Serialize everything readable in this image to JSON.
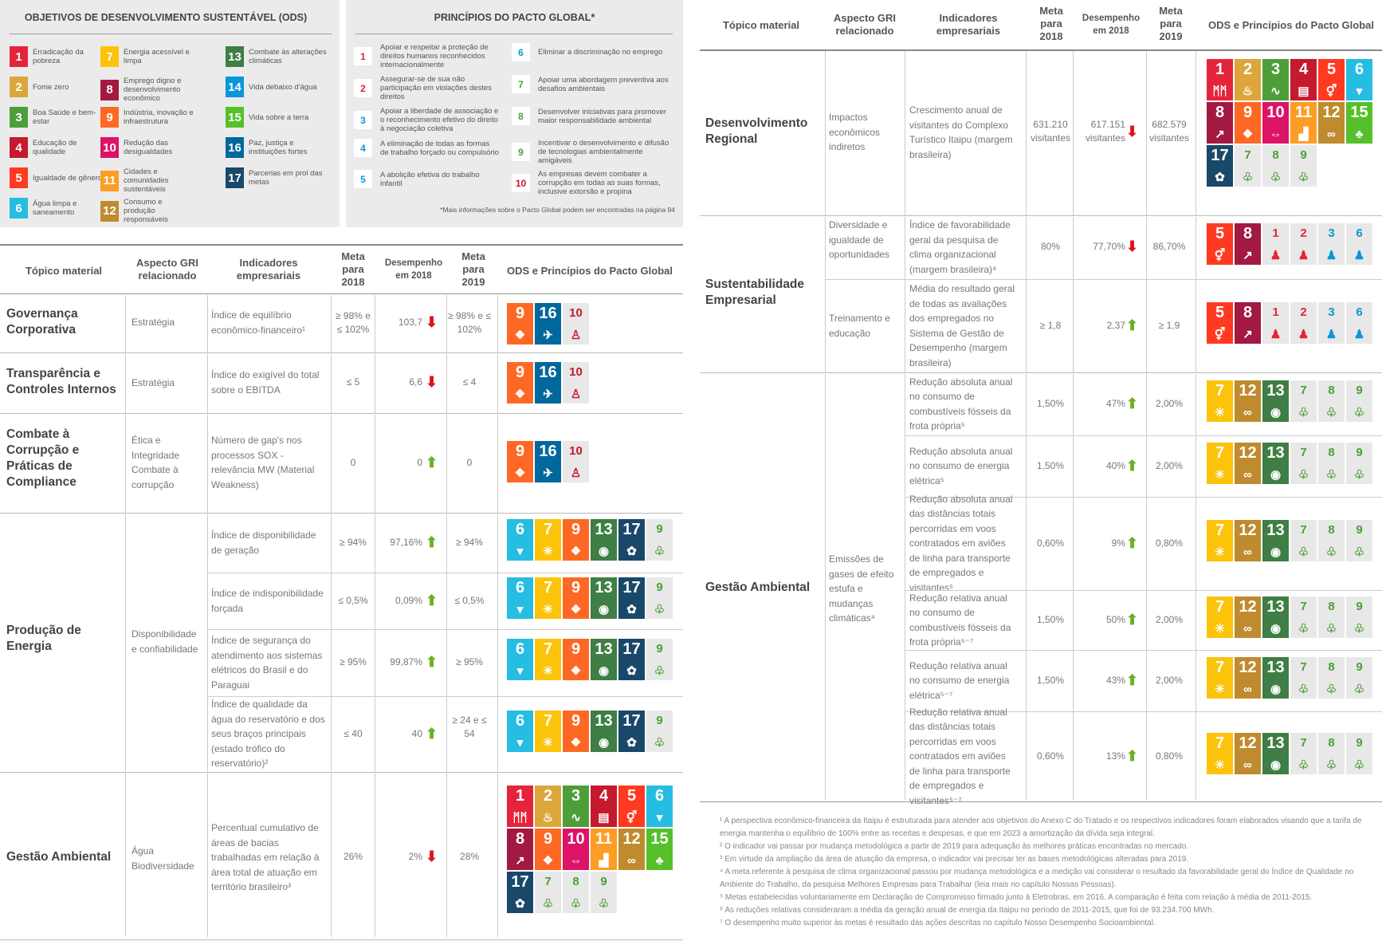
{
  "ods_panel": {
    "title": "OBJETIVOS DE DESENVOLVIMENTO SUSTENTÁVEL (ODS)",
    "items": [
      {
        "n": "1",
        "label": "Erradicação da pobreza",
        "color": "#e5243b"
      },
      {
        "n": "2",
        "label": "Fome zero",
        "color": "#dda63a"
      },
      {
        "n": "3",
        "label": "Boa Saúde e bem-estar",
        "color": "#4c9f38"
      },
      {
        "n": "4",
        "label": "Educação de qualidade",
        "color": "#c5192d"
      },
      {
        "n": "5",
        "label": "Igualdade de gênero",
        "color": "#ff3a21"
      },
      {
        "n": "6",
        "label": "Água limpa e saneamento",
        "color": "#26bde2"
      },
      {
        "n": "7",
        "label": "Energia acessível e limpa",
        "color": "#fcc30b"
      },
      {
        "n": "8",
        "label": "Emprego digno e desenvolvimento econômico",
        "color": "#a21942"
      },
      {
        "n": "9",
        "label": "Indústria, inovação e infraestrutura",
        "color": "#fd6925"
      },
      {
        "n": "10",
        "label": "Redução das desigualdades",
        "color": "#dd1367"
      },
      {
        "n": "11",
        "label": "Cidades e comunidades sustentáveis",
        "color": "#fd9d24"
      },
      {
        "n": "12",
        "label": "Consumo e produção responsáveis",
        "color": "#bf8b2e"
      },
      {
        "n": "13",
        "label": "Combate às alterações climáticas",
        "color": "#3f7e44"
      },
      {
        "n": "14",
        "label": "Vida debaixo d'água",
        "color": "#0a97d9"
      },
      {
        "n": "15",
        "label": "Vida sobre a terra",
        "color": "#56c02b"
      },
      {
        "n": "16",
        "label": "Paz, justiça e instituições fortes",
        "color": "#00689d"
      },
      {
        "n": "17",
        "label": "Parcerias em prol das metas",
        "color": "#19486a"
      }
    ]
  },
  "pg_panel": {
    "title": "PRINCÍPIOS DO PACTO GLOBAL*",
    "note": "*Mais informações sobre o Pacto Global podem ser encontradas na página 94",
    "items": [
      {
        "n": "1",
        "label": "Apoiar e respeitar a proteção de direitos humanos reconhecidos internacionalmente",
        "color": "#e5243b"
      },
      {
        "n": "2",
        "label": "Assegurar-se de sua não participação em violações destes direitos",
        "color": "#e5243b"
      },
      {
        "n": "3",
        "label": "Apoiar a liberdade de associação e o reconhecimento efetivo do direito à negociação coletiva",
        "color": "#0a97d9"
      },
      {
        "n": "4",
        "label": "A eliminação de todas as formas de trabalho forçado ou compulsório",
        "color": "#0a97d9"
      },
      {
        "n": "5",
        "label": "A abolição efetiva do trabalho infantil",
        "color": "#0a97d9"
      },
      {
        "n": "6",
        "label": "Eliminar a discriminação no emprego",
        "color": "#0a97d9"
      },
      {
        "n": "7",
        "label": "Apoiar uma abordagem preventiva aos desafios ambientais",
        "color": "#4c9f38"
      },
      {
        "n": "8",
        "label": "Desenvolver iniciativas para promover maior responsabilidade ambiental",
        "color": "#4c9f38"
      },
      {
        "n": "9",
        "label": "Incentivar o desenvolvimento e difusão de tecnologias ambientalmente amigáveis",
        "color": "#4c9f38"
      },
      {
        "n": "10",
        "label": "As empresas devem combater a corrupção em todas as suas formas, inclusive extorsão e propina",
        "color": "#c5192d"
      }
    ]
  },
  "headers": {
    "topic": "Tópico material",
    "gri": "Aspecto GRI relacionado",
    "ind": "Indicadores empresariais",
    "m18": "Meta para 2018",
    "d18": "Desempenho em 2018",
    "m19": "Meta para 2019",
    "ods": "ODS e Princípios do Pacto Global"
  },
  "left": [
    {
      "topic": "Governança Corporativa",
      "gri": "Estratégia",
      "ind": "Índice de equilíbrio econômico-financeiro¹",
      "m18": "≥ 98% e ≤ 102%",
      "d18": "103,7",
      "arrow": "down",
      "m19": "≥ 98% e ≤ 102%"
    },
    {
      "topic": "Transparência e Controles Internos",
      "gri": "Estratégia",
      "ind": "Índice do exigível do total sobre o EBITDA",
      "m18": "≤ 5",
      "d18": "6,6",
      "arrow": "down",
      "m19": "≤ 4"
    },
    {
      "topic": "Combate à Corrupção e Práticas de Compliance",
      "gri": "Ética e Integridade Combate à corrupção",
      "ind": "Número de gap's nos processos SOX - relevância MW (Material Weakness)",
      "m18": "0",
      "d18": "0",
      "arrow": "up",
      "m19": "0"
    },
    {
      "topic": "Produção de Energia",
      "gri": "Disponibilidade e confiabilidade",
      "rows": [
        {
          "ind": "Índice de disponibilidade de geração",
          "m18": "≥ 94%",
          "d18": "97,16%",
          "arrow": "up",
          "m19": "≥ 94%"
        },
        {
          "ind": "Índice de indisponibilidade forçada",
          "m18": "≤ 0,5%",
          "d18": "0,09%",
          "arrow": "up",
          "m19": "≤ 0,5%"
        },
        {
          "ind": "Índice de segurança do atendimento aos sistemas elétricos do Brasil e do Paraguai",
          "m18": "≥ 95%",
          "d18": "99,87%",
          "arrow": "up",
          "m19": "≥ 95%"
        },
        {
          "ind": "Índice de qualidade da água do reservatório e dos seus braços principais (estado trófico do reservatório)²",
          "m18": "≤ 40",
          "d18": "40",
          "arrow": "up",
          "m19": "≥ 24 e ≤ 54"
        }
      ]
    },
    {
      "topic": "Gestão Ambiental",
      "gri": "Água Biodiversidade",
      "ind": "Percentual cumulativo de áreas de bacias trabalhadas em relação à área total de atuação em território brasileiro³",
      "m18": "26%",
      "d18": "2%",
      "arrow": "down",
      "m19": "28%"
    }
  ],
  "right": [
    {
      "topic": "Desenvolvimento Regional",
      "gri": "Impactos econômicos indiretos",
      "ind": "Crescimento anual de visitantes do Complexo Turístico Itaipu (margem brasileira)",
      "m18": "631.210 visitantes",
      "d18": "617.151 visitantes",
      "arrow": "down",
      "m19": "682.579 visitantes"
    },
    {
      "topic": "Sustentabilidade Empresarial",
      "rows": [
        {
          "gri": "Diversidade e igualdade de oportunidades",
          "ind": "Índice de favorabilidade geral da pesquisa de clima organizacional (margem brasileira)⁴",
          "m18": "80%",
          "d18": "77,70%",
          "arrow": "down",
          "m19": "86,70%"
        },
        {
          "gri": "Treinamento e educação",
          "ind": "Média do resultado geral de todas as avaliações dos empregados no Sistema de Gestão de Desempenho (margem brasileira)",
          "m18": "≥ 1,8",
          "d18": "2,37",
          "arrow": "up",
          "m19": "≥ 1,9"
        }
      ]
    },
    {
      "topic": "Gestão Ambiental",
      "gri": "Emissões de gases de efeito estufa e mudanças climáticas⁴",
      "rows": [
        {
          "ind": "Redução absoluta anual no consumo de combustíveis fósseis da frota própria⁵",
          "m18": "1,50%",
          "d18": "47%",
          "arrow": "up",
          "m19": "2,00%"
        },
        {
          "ind": "Redução absoluta anual no consumo de energia elétrica⁵",
          "m18": "1,50%",
          "d18": "40%",
          "arrow": "up",
          "m19": "2,00%"
        },
        {
          "ind": "Redução absoluta anual das distâncias totais percorridas em voos contratados em aviões de linha para transporte de empregados e visitantes⁵",
          "m18": "0,60%",
          "d18": "9%",
          "arrow": "up",
          "m19": "0,80%"
        },
        {
          "ind": "Redução relativa anual no consumo de combustíveis fósseis da frota própria⁵⁻⁷",
          "m18": "1,50%",
          "d18": "50%",
          "arrow": "up",
          "m19": "2,00%"
        },
        {
          "ind": "Redução relativa anual no consumo de energia elétrica⁵⁻⁷",
          "m18": "1,50%",
          "d18": "43%",
          "arrow": "up",
          "m19": "2,00%"
        },
        {
          "ind": "Redução relativa anual das distâncias totais percorridas em voos contratados em aviões de linha para transporte de empregados e visitantes⁵⁻⁷",
          "m18": "0,60%",
          "d18": "13%",
          "arrow": "up",
          "m19": "0,80%"
        }
      ]
    }
  ],
  "footnotes": [
    "¹ A perspectiva econômico-financeira da Itaipu é estruturada para atender aos objetivos do Anexo C do Tratado e os respectivos indicadores foram elaborados visando que a tarifa de energia mantenha o equilíbrio de 100% entre as receitas e despesas, e que em 2023 a amortização da dívida seja integral.",
    "² O indicador vai passar por mudança metodológica a partir de 2019 para adequação às melhores práticas encontradas no mercado.",
    "³ Em virtude da ampliação da área de atuação da empresa, o indicador vai precisar ter as bases metodológicas alteradas para 2019.",
    "⁴ A meta referente à pesquisa de clima organizacional passou por mudança metodológica e a medição vai considerar o resultado da favorabilidade geral do Índice de Qualidade no Ambiente do Trabalho, da pesquisa Melhores Empresas para Trabalhar (leia mais no capítulo Nossas Pessoas).",
    "⁵ Metas estabelecidas voluntariamente em Declaração de Compromisso firmado junto à Eletrobras, em 2016. A comparação é feita com relação à média de 2011-2015.",
    "⁶ As reduções relativas consideraram a média da geração anual de energia da Itaipu no período de 2011-2015, que foi de 93.234.700 MWh.",
    "⁷ O desempenho muito superior às metas é resultado das ações descritas no capítulo Nosso Desempenho Socioambiental."
  ]
}
